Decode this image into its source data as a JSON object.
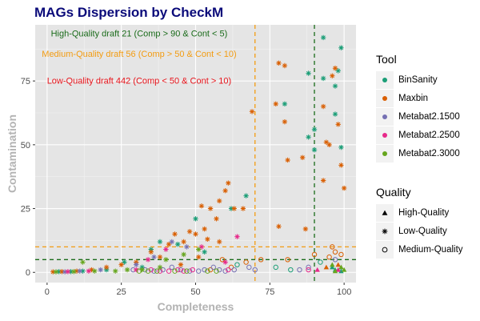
{
  "title": "MAGs Dispersion by CheckM",
  "chart_data": {
    "type": "scatter",
    "title": "MAGs Dispersion by CheckM",
    "xlabel": "Completeness",
    "ylabel": "Contamination",
    "xlim": [
      -4,
      104
    ],
    "ylim": [
      -4,
      97
    ],
    "xticks": [
      0,
      25,
      50,
      75,
      100
    ],
    "yticks": [
      0,
      25,
      50,
      75
    ],
    "grid": true,
    "background": "#e5e5e5",
    "reference_lines": [
      {
        "axis": "x",
        "value": 70,
        "color": "#f39c12"
      },
      {
        "axis": "x",
        "value": 90,
        "color": "#1a6b1a"
      },
      {
        "axis": "y",
        "value": 10,
        "color": "#f39c12"
      },
      {
        "axis": "y",
        "value": 5,
        "color": "#1a6b1a"
      }
    ],
    "annotations": [
      {
        "text": "High-Quality draft 21 (Comp > 90 & Cont < 5)",
        "x": 31,
        "y": 92.5,
        "color": "#1a6b1a"
      },
      {
        "text": "Medium-Quality draft 56 (Comp > 50 & Cont < 10)",
        "x": 31,
        "y": 84.5,
        "color": "#f39c12"
      },
      {
        "text": "Low-Quality draft 442 (Comp < 50 & Cont > 10)",
        "x": 31,
        "y": 74,
        "color": "#e8131a"
      }
    ],
    "tool_colors": {
      "BinSanity": "#1b9e77",
      "Maxbin": "#d95f02",
      "Metabat2.1500": "#7570b3",
      "Metabat2.2500": "#e7298a",
      "Metabat2.3000": "#66a61e"
    },
    "series": [
      {
        "name": "BinSanity",
        "points": [
          [
            93,
            92,
            "L"
          ],
          [
            99,
            88,
            "L"
          ],
          [
            88,
            78,
            "L"
          ],
          [
            93,
            76,
            "L"
          ],
          [
            98,
            79,
            "L"
          ],
          [
            97,
            73,
            "L"
          ],
          [
            97,
            62,
            "L"
          ],
          [
            99,
            49,
            "L"
          ],
          [
            88,
            53,
            "L"
          ],
          [
            90,
            48,
            "L"
          ],
          [
            80,
            66,
            "L"
          ],
          [
            90,
            56,
            "L"
          ],
          [
            67,
            30,
            "L"
          ],
          [
            62,
            25,
            "L"
          ],
          [
            50,
            21,
            "L"
          ],
          [
            38,
            12,
            "L"
          ],
          [
            53,
            8,
            "L"
          ],
          [
            44,
            11,
            "L"
          ],
          [
            35,
            9,
            "L"
          ],
          [
            26,
            4,
            "L"
          ],
          [
            20,
            1,
            "L"
          ],
          [
            32,
            2,
            "L"
          ],
          [
            12,
            0.5,
            "L"
          ],
          [
            8,
            0.3,
            "L"
          ],
          [
            4,
            0.3,
            "L"
          ],
          [
            96,
            2,
            "H"
          ],
          [
            97,
            1,
            "H"
          ],
          [
            99,
            0.5,
            "H"
          ],
          [
            64,
            3,
            "M"
          ],
          [
            77,
            2,
            "M"
          ],
          [
            82,
            1,
            "M"
          ],
          [
            92,
            4,
            "M"
          ]
        ]
      },
      {
        "name": "Maxbin",
        "points": [
          [
            78,
            82,
            "L"
          ],
          [
            80,
            81,
            "L"
          ],
          [
            97,
            80,
            "L"
          ],
          [
            96,
            77,
            "L"
          ],
          [
            93,
            65,
            "L"
          ],
          [
            77,
            66,
            "L"
          ],
          [
            98,
            58,
            "L"
          ],
          [
            94,
            51,
            "L"
          ],
          [
            95,
            50,
            "L"
          ],
          [
            86,
            45,
            "L"
          ],
          [
            81,
            44,
            "L"
          ],
          [
            80,
            59,
            "L"
          ],
          [
            69,
            63,
            "L"
          ],
          [
            99,
            42,
            "L"
          ],
          [
            93,
            36,
            "L"
          ],
          [
            100,
            33,
            "L"
          ],
          [
            61,
            35,
            "L"
          ],
          [
            60,
            32,
            "L"
          ],
          [
            58,
            28,
            "L"
          ],
          [
            52,
            26,
            "L"
          ],
          [
            55,
            25,
            "L"
          ],
          [
            66,
            25,
            "L"
          ],
          [
            63,
            25,
            "L"
          ],
          [
            57,
            21,
            "L"
          ],
          [
            53,
            17,
            "L"
          ],
          [
            48,
            16,
            "L"
          ],
          [
            50,
            15,
            "L"
          ],
          [
            54,
            13,
            "L"
          ],
          [
            58,
            12,
            "L"
          ],
          [
            46,
            12,
            "L"
          ],
          [
            78,
            18,
            "L"
          ],
          [
            87,
            17,
            "L"
          ],
          [
            43,
            15,
            "L"
          ],
          [
            41,
            11,
            "L"
          ],
          [
            35,
            8,
            "L"
          ],
          [
            38,
            6,
            "L"
          ],
          [
            30,
            4,
            "L"
          ],
          [
            25,
            3,
            "L"
          ],
          [
            20,
            2,
            "L"
          ],
          [
            15,
            1,
            "L"
          ],
          [
            10,
            0.5,
            "L"
          ],
          [
            5,
            0.3,
            "L"
          ],
          [
            2,
            0.2,
            "L"
          ],
          [
            45,
            3,
            "L"
          ],
          [
            51,
            6,
            "L"
          ],
          [
            95,
            6,
            "M"
          ],
          [
            97,
            8,
            "M"
          ],
          [
            96,
            10,
            "M"
          ],
          [
            99,
            7,
            "M"
          ],
          [
            90,
            7,
            "M"
          ],
          [
            67,
            4,
            "M"
          ],
          [
            72,
            5,
            "M"
          ],
          [
            59,
            5,
            "M"
          ],
          [
            62,
            2,
            "M"
          ],
          [
            55,
            1,
            "M"
          ],
          [
            81,
            5,
            "M"
          ],
          [
            98,
            3,
            "H"
          ],
          [
            94,
            2,
            "H"
          ]
        ]
      },
      {
        "name": "Metabat2.1500",
        "points": [
          [
            42,
            12,
            "L"
          ],
          [
            47,
            10,
            "L"
          ],
          [
            36,
            6,
            "L"
          ],
          [
            30,
            3,
            "L"
          ],
          [
            18,
            1,
            "L"
          ],
          [
            11,
            0.5,
            "L"
          ],
          [
            6,
            0.2,
            "L"
          ],
          [
            58,
            1,
            "M"
          ],
          [
            60,
            0.5,
            "M"
          ],
          [
            63,
            1,
            "M"
          ],
          [
            68,
            2,
            "M"
          ],
          [
            70,
            1,
            "M"
          ],
          [
            56,
            2,
            "M"
          ],
          [
            53,
            1,
            "M"
          ],
          [
            51,
            0.5,
            "M"
          ],
          [
            48,
            0.5,
            "M"
          ],
          [
            45,
            1,
            "M"
          ],
          [
            42,
            2,
            "M"
          ],
          [
            39,
            1,
            "M"
          ],
          [
            36,
            0.5,
            "M"
          ],
          [
            33,
            1,
            "M"
          ],
          [
            29,
            1,
            "M"
          ],
          [
            85,
            1,
            "M"
          ],
          [
            88,
            2,
            "M"
          ],
          [
            97,
            5,
            "M"
          ]
        ]
      },
      {
        "name": "Metabat2.2500",
        "points": [
          [
            64,
            14,
            "L"
          ],
          [
            60,
            4,
            "L"
          ],
          [
            52,
            10,
            "L"
          ],
          [
            40,
            9,
            "L"
          ],
          [
            34,
            5,
            "L"
          ],
          [
            30,
            1,
            "L"
          ],
          [
            14,
            0.5,
            "L"
          ],
          [
            7,
            0.3,
            "L"
          ],
          [
            61,
            1,
            "M"
          ],
          [
            49,
            1,
            "M"
          ],
          [
            46,
            0.5,
            "M"
          ],
          [
            44,
            1,
            "M"
          ],
          [
            41,
            0.5,
            "M"
          ],
          [
            38,
            0.5,
            "M"
          ],
          [
            35,
            1,
            "M"
          ],
          [
            88,
            1,
            "M"
          ],
          [
            91,
            1,
            "H"
          ],
          [
            98,
            1,
            "H"
          ]
        ]
      },
      {
        "name": "Metabat2.3000",
        "points": [
          [
            51,
            9,
            "L"
          ],
          [
            46,
            7,
            "L"
          ],
          [
            40,
            5,
            "L"
          ],
          [
            38,
            2,
            "L"
          ],
          [
            32,
            1,
            "L"
          ],
          [
            27,
            1,
            "L"
          ],
          [
            23,
            0.5,
            "L"
          ],
          [
            16,
            0.5,
            "L"
          ],
          [
            12,
            4,
            "L"
          ],
          [
            9,
            0.3,
            "L"
          ],
          [
            3,
            0.2,
            "L"
          ],
          [
            57,
            0.5,
            "M"
          ],
          [
            54,
            0.5,
            "M"
          ],
          [
            47,
            0.5,
            "M"
          ],
          [
            43,
            0.5,
            "M"
          ],
          [
            37,
            0.5,
            "M"
          ],
          [
            34,
            0.5,
            "M"
          ],
          [
            31,
            0.5,
            "M"
          ],
          [
            96,
            3,
            "H"
          ],
          [
            99,
            2,
            "H"
          ],
          [
            100,
            1,
            "H"
          ],
          [
            97,
            0.5,
            "H"
          ]
        ]
      }
    ]
  },
  "legend": {
    "tool_title": "Tool",
    "tools": [
      "BinSanity",
      "Maxbin",
      "Metabat2.1500",
      "Metabat2.2500",
      "Metabat2.3000"
    ],
    "quality_title": "Quality",
    "qualities": [
      {
        "code": "H",
        "label": "High-Quality"
      },
      {
        "code": "L",
        "label": "Low-Quality"
      },
      {
        "code": "M",
        "label": "Medium-Quality"
      }
    ]
  }
}
